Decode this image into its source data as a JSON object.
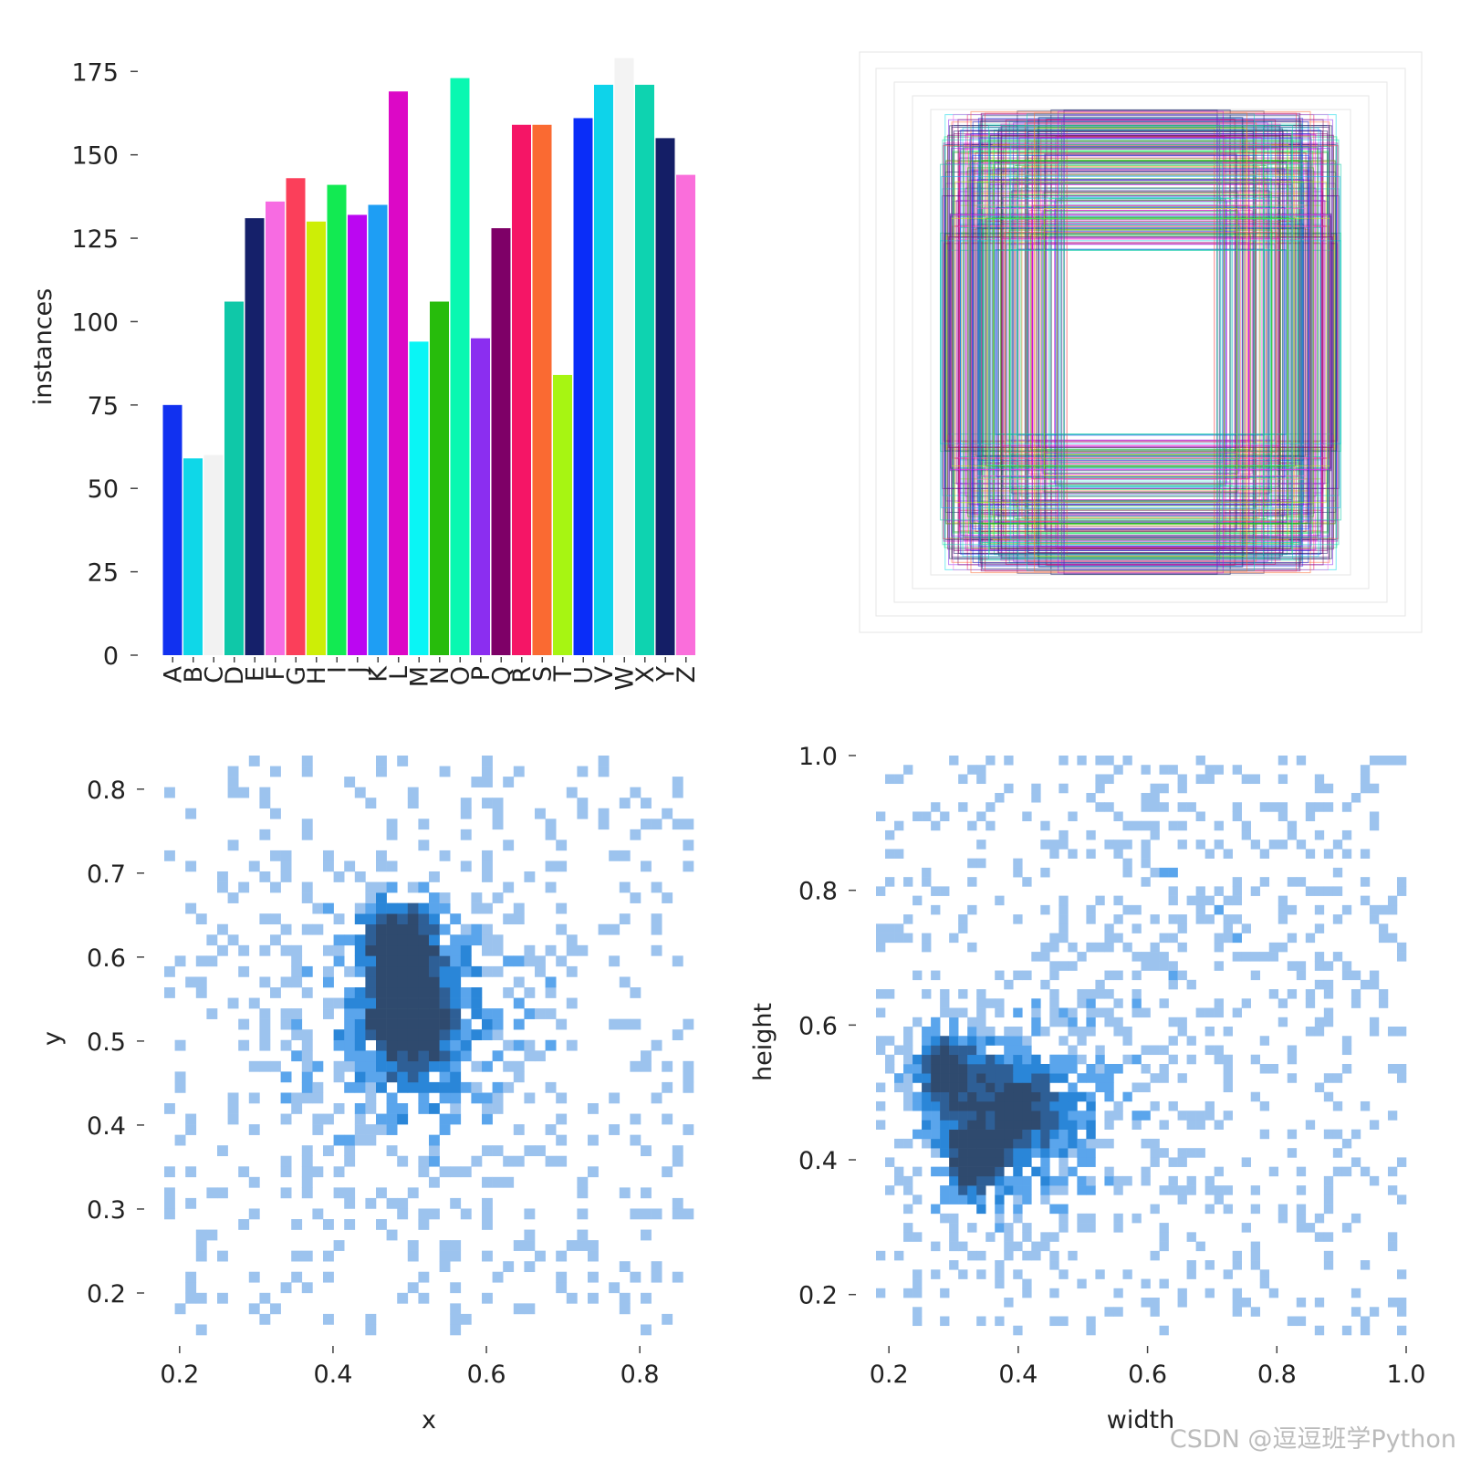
{
  "chart_data": [
    {
      "type": "bar",
      "ylabel": "instances",
      "ylim": [
        0,
        180
      ],
      "y_ticks": [
        "0",
        "25",
        "50",
        "75",
        "100",
        "125",
        "150",
        "175"
      ],
      "categories": [
        "A",
        "B",
        "C",
        "D",
        "E",
        "F",
        "G",
        "H",
        "I",
        "J",
        "K",
        "L",
        "M",
        "N",
        "O",
        "P",
        "Q",
        "R",
        "S",
        "T",
        "U",
        "V",
        "W",
        "X",
        "Y",
        "Z"
      ],
      "values": [
        75,
        59,
        60,
        106,
        131,
        136,
        143,
        130,
        141,
        132,
        135,
        169,
        94,
        106,
        173,
        95,
        128,
        159,
        159,
        84,
        161,
        171,
        179,
        171,
        155,
        144
      ],
      "colors": [
        "#1131F0",
        "#0FD7E8",
        "#F2F2F2",
        "#0FC8A8",
        "#15206A",
        "#F76BE2",
        "#FB3F5A",
        "#CDEE06",
        "#12EA52",
        "#BB06F2",
        "#1E9EF4",
        "#DC08C6",
        "#0AF5F5",
        "#27BC0C",
        "#09F8B1",
        "#8B2EF0",
        "#7E0067",
        "#F51566",
        "#FA6A32",
        "#A7F512",
        "#0A2DF8",
        "#0ED3EA",
        "#F3F3F3",
        "#0ED3B0",
        "#141E66",
        "#FA6EDB"
      ],
      "grid": false,
      "legend": "none"
    },
    {
      "type": "other",
      "description_kind": "bounding-box overlay",
      "legend": "none"
    },
    {
      "type": "heatmap",
      "xlabel": "x",
      "ylabel": "y",
      "xlim": [
        0.18,
        0.87
      ],
      "ylim": [
        0.15,
        0.84
      ],
      "x_ticks": [
        "0.2",
        "0.4",
        "0.6",
        "0.8"
      ],
      "y_ticks": [
        "0.2",
        "0.3",
        "0.4",
        "0.5",
        "0.6",
        "0.7",
        "0.8"
      ],
      "density_centers": [
        {
          "x": 0.49,
          "y": 0.62,
          "level": 1.0
        },
        {
          "x": 0.5,
          "y": 0.55,
          "level": 0.85
        },
        {
          "x": 0.5,
          "y": 0.5,
          "level": 0.5
        }
      ],
      "grid": false,
      "legend": "none"
    },
    {
      "type": "heatmap",
      "xlabel": "width",
      "ylabel": "height",
      "xlim": [
        0.18,
        1.0
      ],
      "ylim": [
        0.14,
        1.0
      ],
      "x_ticks": [
        "0.2",
        "0.4",
        "0.6",
        "0.8",
        "1.0"
      ],
      "y_ticks": [
        "0.2",
        "0.4",
        "0.6",
        "0.8",
        "1.0"
      ],
      "density_centers": [
        {
          "x": 0.29,
          "y": 0.53,
          "level": 1.0
        },
        {
          "x": 0.33,
          "y": 0.4,
          "level": 0.95
        },
        {
          "x": 0.4,
          "y": 0.48,
          "level": 0.6
        }
      ],
      "grid": false,
      "legend": "none"
    }
  ],
  "watermark": "CSDN @逗逗班学Python"
}
